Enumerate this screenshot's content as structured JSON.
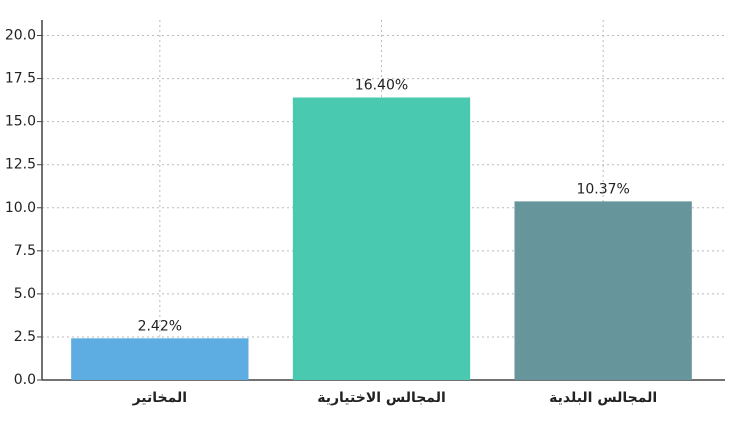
{
  "chart_data": {
    "type": "bar",
    "categories": [
      "المخاتير",
      "المجالس الاختيارية",
      "المجالس البلدية"
    ],
    "values": [
      2.42,
      16.4,
      10.37
    ],
    "value_labels": [
      "2.42%",
      "16.40%",
      "10.37%"
    ],
    "colors": [
      "#5dade2",
      "#48c9b0",
      "#66969b"
    ],
    "ylim": [
      0,
      20.9
    ],
    "yticks": [
      {
        "value": 0,
        "label": "0.0"
      },
      2.5,
      {
        "value": 5,
        "label": "5.0"
      },
      7.5,
      {
        "value": 10,
        "label": "10.0"
      },
      12.5,
      {
        "value": 15,
        "label": "15.0"
      },
      17.5,
      {
        "value": 20,
        "label": "20.0"
      }
    ],
    "grid": true
  }
}
